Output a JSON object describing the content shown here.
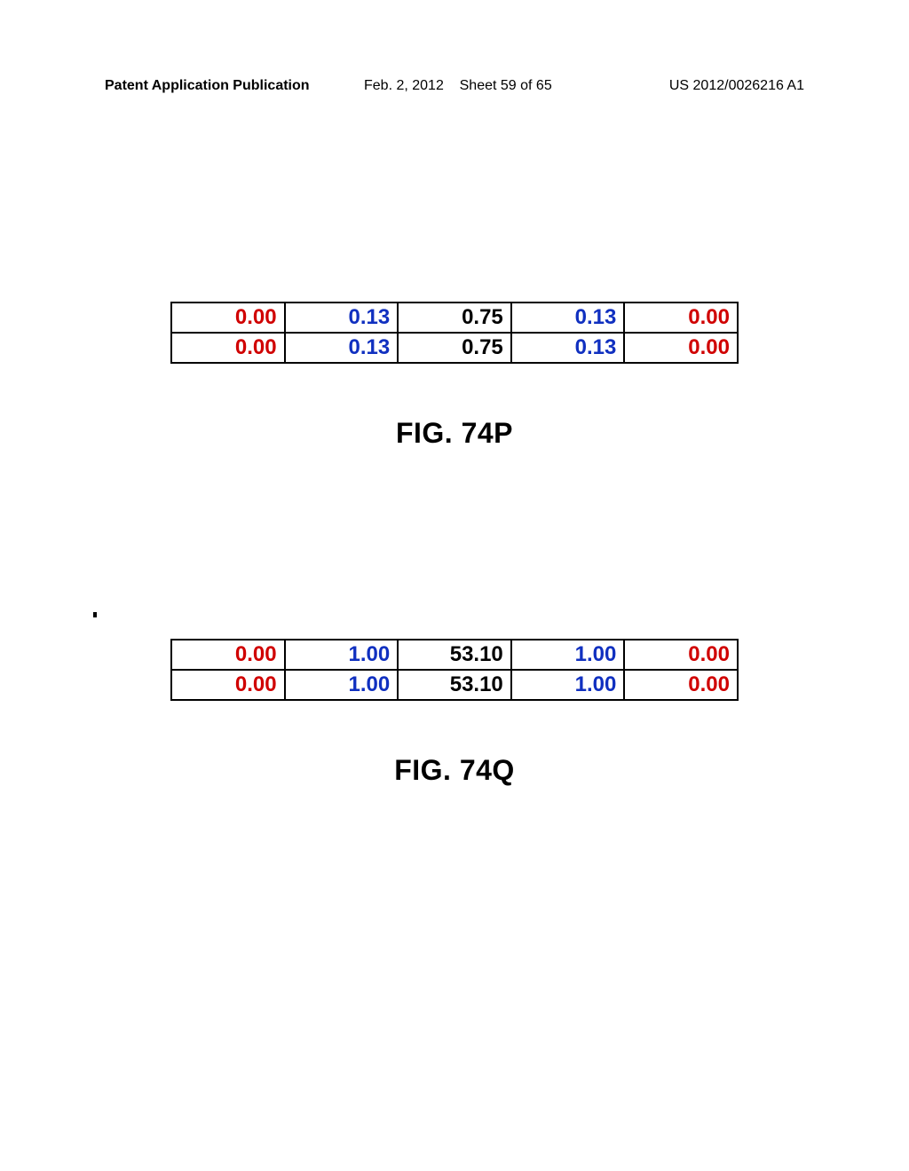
{
  "header": {
    "left": "Patent Application Publication",
    "date": "Feb. 2, 2012",
    "sheet": "Sheet 59 of 65",
    "docnum": "US 2012/0026216 A1"
  },
  "figures": {
    "p": {
      "label": "FIG. 74P",
      "type": "table",
      "text_fontsize": 24,
      "label_fontsize": 32,
      "border_color": "#000000",
      "colors": {
        "red": "#d00000",
        "blue": "#1030c0",
        "black": "#000000"
      },
      "rows": [
        [
          {
            "v": "0.00",
            "c": "red"
          },
          {
            "v": "0.13",
            "c": "blue"
          },
          {
            "v": "0.75",
            "c": "black"
          },
          {
            "v": "0.13",
            "c": "blue"
          },
          {
            "v": "0.00",
            "c": "red"
          }
        ],
        [
          {
            "v": "0.00",
            "c": "red"
          },
          {
            "v": "0.13",
            "c": "blue"
          },
          {
            "v": "0.75",
            "c": "black"
          },
          {
            "v": "0.13",
            "c": "blue"
          },
          {
            "v": "0.00",
            "c": "red"
          }
        ]
      ]
    },
    "q": {
      "label": "FIG. 74Q",
      "type": "table",
      "text_fontsize": 24,
      "label_fontsize": 32,
      "border_color": "#000000",
      "colors": {
        "red": "#d00000",
        "blue": "#1030c0",
        "black": "#000000"
      },
      "rows": [
        [
          {
            "v": "0.00",
            "c": "red"
          },
          {
            "v": "1.00",
            "c": "blue"
          },
          {
            "v": "53.10",
            "c": "black"
          },
          {
            "v": "1.00",
            "c": "blue"
          },
          {
            "v": "0.00",
            "c": "red"
          }
        ],
        [
          {
            "v": "0.00",
            "c": "red"
          },
          {
            "v": "1.00",
            "c": "blue"
          },
          {
            "v": "53.10",
            "c": "black"
          },
          {
            "v": "1.00",
            "c": "blue"
          },
          {
            "v": "0.00",
            "c": "red"
          }
        ]
      ]
    }
  }
}
